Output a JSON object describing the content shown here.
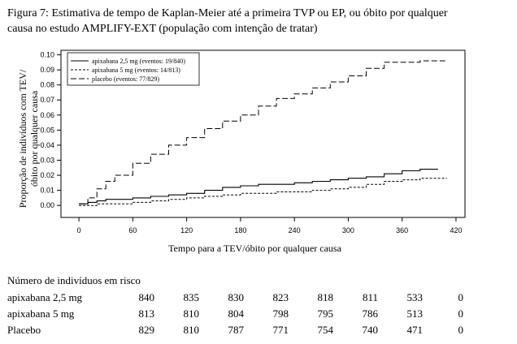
{
  "caption": {
    "line1": "Figura 7: Estimativa de tempo de Kaplan-Meier até a primeira TVP ou EP, ou óbito por qualquer",
    "line2": "causa no estudo AMPLIFY-EXT (população com intenção de tratar)"
  },
  "chart_data": {
    "type": "line",
    "title": "",
    "xlabel": "Tempo para a TEV/óbito por qualquer causa",
    "ylabel": "Proporção de indivíduos com TEV/ óbito por qualquer causa",
    "xlim": [
      -20,
      430
    ],
    "ylim": [
      -0.008,
      0.103
    ],
    "x_ticks": [
      0,
      60,
      120,
      180,
      240,
      300,
      360,
      420
    ],
    "y_ticks": [
      0.0,
      0.01,
      0.02,
      0.03,
      0.04,
      0.05,
      0.06,
      0.07,
      0.08,
      0.09,
      0.1
    ],
    "y_tick_labels": [
      "0.00",
      "0.01",
      "0.02",
      "0.03",
      "0.04",
      "0.05",
      "0.06",
      "0.07",
      "0.08",
      "0.09",
      "0.10"
    ],
    "grid": false,
    "legend_position": "top-left",
    "series": [
      {
        "name": "apixabana 2,5 mg (eventos: 19/840)",
        "style": "solid",
        "color": "#000000",
        "x": [
          0,
          10,
          20,
          30,
          40,
          60,
          80,
          100,
          120,
          140,
          160,
          180,
          200,
          220,
          240,
          260,
          280,
          300,
          320,
          340,
          360,
          380,
          400
        ],
        "y": [
          0.001,
          0.002,
          0.003,
          0.004,
          0.004,
          0.005,
          0.006,
          0.007,
          0.008,
          0.01,
          0.012,
          0.013,
          0.014,
          0.014,
          0.015,
          0.016,
          0.017,
          0.018,
          0.019,
          0.021,
          0.023,
          0.024,
          0.024
        ]
      },
      {
        "name": "apixabana 5 mg (eventos: 14/813)",
        "style": "dotted",
        "color": "#000000",
        "x": [
          0,
          20,
          40,
          60,
          80,
          100,
          120,
          140,
          160,
          180,
          200,
          220,
          240,
          260,
          280,
          300,
          320,
          340,
          360,
          380,
          400,
          410
        ],
        "y": [
          0.0,
          0.001,
          0.001,
          0.002,
          0.003,
          0.004,
          0.005,
          0.006,
          0.007,
          0.008,
          0.008,
          0.009,
          0.009,
          0.01,
          0.011,
          0.012,
          0.014,
          0.016,
          0.017,
          0.018,
          0.018,
          0.018
        ]
      },
      {
        "name": "placebo (eventos: 77/829)",
        "style": "dashed",
        "color": "#000000",
        "x": [
          0,
          10,
          20,
          30,
          40,
          60,
          80,
          100,
          120,
          140,
          160,
          180,
          200,
          220,
          240,
          260,
          280,
          300,
          320,
          340,
          360,
          380,
          400,
          410
        ],
        "y": [
          0.001,
          0.005,
          0.011,
          0.016,
          0.02,
          0.028,
          0.034,
          0.04,
          0.045,
          0.051,
          0.056,
          0.06,
          0.066,
          0.071,
          0.074,
          0.078,
          0.082,
          0.086,
          0.091,
          0.095,
          0.095,
          0.096,
          0.096,
          0.096
        ]
      }
    ]
  },
  "risk_table": {
    "title": "Número de indivíduos em risco",
    "rows": [
      {
        "label": "apixabana 2,5 mg",
        "values": [
          "840",
          "835",
          "830",
          "823",
          "818",
          "811",
          "533",
          "0"
        ]
      },
      {
        "label": "apixabana 5 mg",
        "values": [
          "813",
          "810",
          "804",
          "798",
          "795",
          "786",
          "513",
          "0"
        ]
      },
      {
        "label": "Placebo",
        "values": [
          "829",
          "810",
          "787",
          "771",
          "754",
          "740",
          "471",
          "0"
        ]
      }
    ]
  }
}
